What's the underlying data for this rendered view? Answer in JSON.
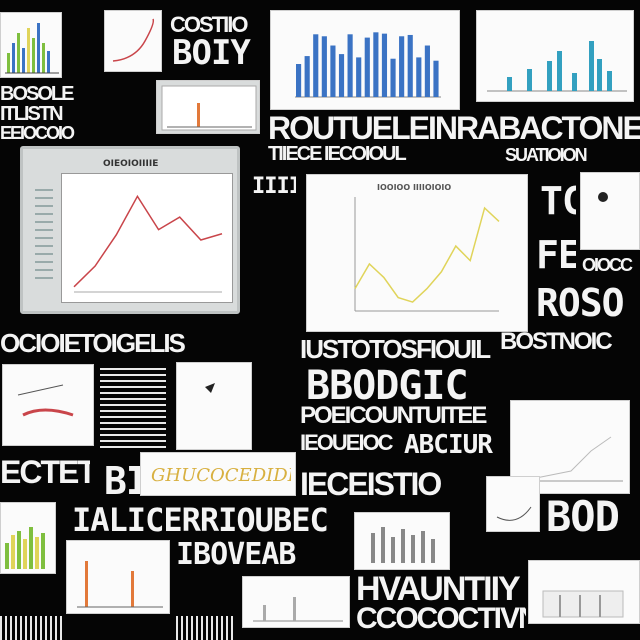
{
  "visible_words": {
    "t1": "COSTIIO",
    "t2": "BOIY",
    "t3": "ROUTUELEINRABACTONE",
    "t4": "TIIECE IECOIOUL",
    "t5": "SUATIOION",
    "t6": "TC",
    "t7": "FE",
    "t8": "ROSO",
    "t9": "BOSOLE",
    "t10": "ITLISTN",
    "t11": "OCIOIETOIGELIS",
    "t12": "IUSTOTOSFIOUIL",
    "t13": "BBODGIC",
    "t14": "POEICOUNTUITEE",
    "t15": "IEOUEIOC",
    "t16": "ABCIUR",
    "t17": "ECTETTY",
    "t18": "BI",
    "t19": "IECEISTIO",
    "t20": "BOD",
    "t21": "IALICERRIOUBEC",
    "t22": "IBOVEAB",
    "t23": "HVAUNTIIY",
    "t24": "CCOCOCTIVNV",
    "t25": "OIOCC",
    "t26": "EEIOCOIO",
    "t27": "IIIIIILIL",
    "t28": "BOSTNOIC"
  },
  "monitor": {
    "title": "OIEOIOIIIIE",
    "line_values": [
      0.05,
      0.25,
      0.55,
      0.92,
      0.6,
      0.72,
      0.5,
      0.56
    ]
  },
  "center_chart": {
    "title": "IOOIOO IIIIOIOIO",
    "line_values": [
      0.2,
      0.42,
      0.3,
      0.12,
      0.08,
      0.2,
      0.35,
      0.58,
      0.45,
      0.92,
      0.8
    ]
  },
  "top_bar_chart": {
    "values": [
      0.5,
      0.62,
      0.95,
      0.92,
      0.78,
      0.65,
      0.95,
      0.6,
      0.9,
      0.98,
      0.96,
      0.58,
      0.92,
      0.94,
      0.6,
      0.78,
      0.55
    ]
  },
  "banner": {
    "text": "GHUCOCEDIDIV"
  },
  "colors": {
    "bg": "#050505",
    "ink": "#f4f4f4",
    "blue": "#3b73c4",
    "teal": "#33a0c0",
    "red": "#c9454a",
    "yellow": "#e0d45a",
    "orange": "#e2793a",
    "green": "#7fbf3f"
  }
}
